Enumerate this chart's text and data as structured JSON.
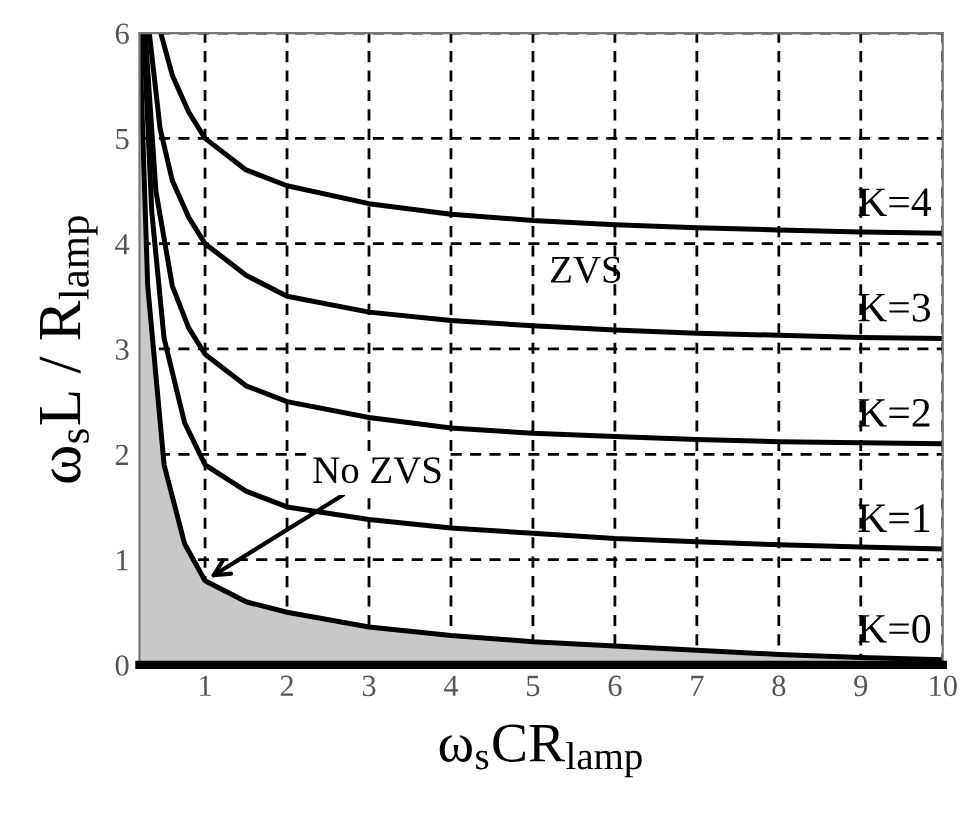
{
  "chart_data": {
    "type": "line",
    "xlabel": "ω$_{s}$CR$_{lamp}$",
    "ylabel": "ω$_{s}$L / R$_{lamp}$",
    "xlim": [
      0.2,
      10
    ],
    "xticks": [
      1,
      2,
      3,
      4,
      5,
      6,
      7,
      8,
      9,
      10
    ],
    "ylim": [
      0,
      6
    ],
    "yticks": [
      0,
      1,
      2,
      3,
      4,
      5,
      6
    ],
    "grid": true,
    "line_style": "solid",
    "legend": false,
    "series": [
      {
        "name": "K=0",
        "type": "area",
        "color": "#c8c8c8",
        "x": [
          0.2,
          0.3,
          0.5,
          0.75,
          1,
          1.5,
          2,
          3,
          4,
          5,
          6,
          7,
          8,
          9,
          10
        ],
        "values": [
          6,
          3.6,
          1.9,
          1.15,
          0.8,
          0.6,
          0.5,
          0.36,
          0.28,
          0.22,
          0.18,
          0.14,
          0.1,
          0.07,
          0.05
        ]
      },
      {
        "name": "K=1",
        "color": "#000000",
        "x": [
          0.25,
          0.35,
          0.5,
          0.75,
          1,
          1.5,
          2,
          3,
          4,
          5,
          6,
          7,
          8,
          9,
          10
        ],
        "values": [
          6,
          4.3,
          3.1,
          2.3,
          1.9,
          1.65,
          1.5,
          1.38,
          1.3,
          1.25,
          1.2,
          1.17,
          1.14,
          1.12,
          1.1
        ]
      },
      {
        "name": "K=2",
        "color": "#000000",
        "x": [
          0.27,
          0.4,
          0.6,
          0.8,
          1,
          1.5,
          2,
          3,
          4,
          5,
          6,
          7,
          8,
          9,
          10
        ],
        "values": [
          6,
          4.5,
          3.6,
          3.2,
          2.95,
          2.65,
          2.5,
          2.35,
          2.25,
          2.2,
          2.17,
          2.14,
          2.12,
          2.11,
          2.1
        ]
      },
      {
        "name": "K=3",
        "color": "#000000",
        "x": [
          0.32,
          0.45,
          0.6,
          0.8,
          1,
          1.5,
          2,
          3,
          4,
          5,
          6,
          7,
          8,
          9,
          10
        ],
        "values": [
          6,
          5.1,
          4.6,
          4.25,
          4.0,
          3.7,
          3.5,
          3.35,
          3.27,
          3.22,
          3.18,
          3.15,
          3.13,
          3.11,
          3.1
        ]
      },
      {
        "name": "K=4",
        "color": "#000000",
        "x": [
          0.46,
          0.6,
          0.8,
          1,
          1.5,
          2,
          3,
          4,
          5,
          6,
          7,
          8,
          9,
          10
        ],
        "values": [
          6,
          5.6,
          5.25,
          5.0,
          4.7,
          4.55,
          4.38,
          4.28,
          4.22,
          4.18,
          4.15,
          4.13,
          4.11,
          4.1
        ]
      }
    ],
    "annotations": [
      "ZVS",
      {
        "text": "No ZVS",
        "x": 1,
        "y": 0.8
      }
    ]
  }
}
